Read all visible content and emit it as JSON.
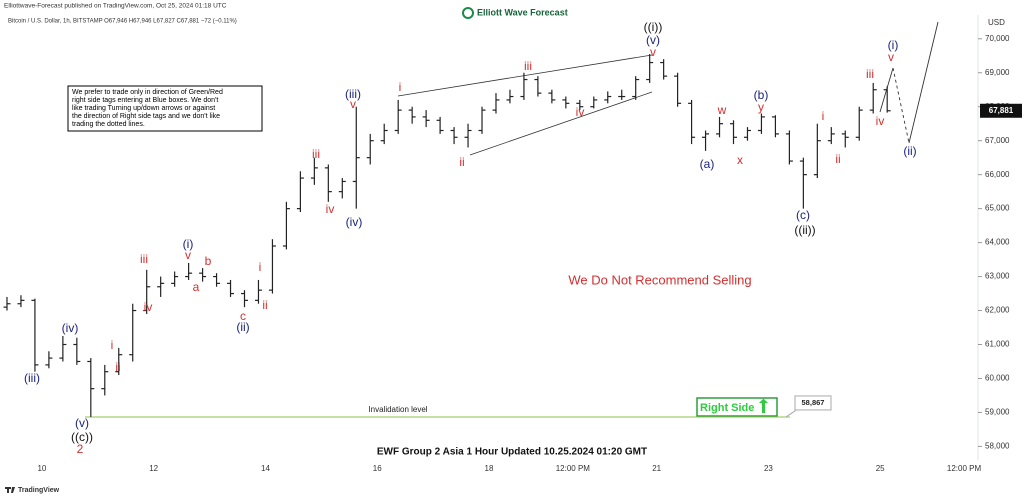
{
  "header": {
    "published": "Elliottwave-Forecast published on TradingView.com, Oct 25, 2024 01:18 UTC",
    "logo": "Elliott Wave Forecast",
    "footer": "TradingView"
  },
  "chart_data": {
    "type": "ohlc",
    "title": "EWF Group 2 Asia 1 Hour Updated 10.25.2024 01:20 GMT",
    "symbol_text": "Bitcoin / U.S. Dollar, 1h, BITSTAMP  O67,946 H67,946 L67,827 C67,881 −72 (−0.11%)",
    "currency": "USD",
    "color": "#222222",
    "grid": false,
    "categories": [
      null,
      null,
      null,
      "10",
      null,
      null,
      null,
      null,
      null,
      null,
      null,
      "12",
      null,
      null,
      null,
      null,
      null,
      null,
      null,
      "14",
      null,
      null,
      null,
      null,
      null,
      null,
      null,
      "16",
      null,
      null,
      null,
      null,
      null,
      null,
      null,
      "18",
      null,
      null,
      null,
      null,
      null,
      "12:00 PM",
      null,
      null,
      null,
      null,
      null,
      "21",
      null,
      null,
      null,
      null,
      null,
      null,
      null,
      "23",
      null,
      null,
      null,
      null,
      null,
      null,
      null,
      "25",
      null,
      null,
      null,
      null,
      null,
      "12:00 PM"
    ],
    "open": [
      62100,
      62200,
      62300,
      60400,
      60600,
      61000,
      60500,
      59700,
      60200,
      60700,
      62000,
      62700,
      62800,
      63000,
      63100,
      63000,
      62800,
      62500,
      62300,
      62600,
      63900,
      65000,
      65900,
      66200,
      65500,
      65800,
      66500,
      67000,
      67300,
      67900,
      67700,
      67600,
      67300,
      67100,
      67300,
      67900,
      68200,
      68300,
      68800,
      68400,
      68200,
      68100,
      68000,
      68200,
      68300,
      68300,
      68800,
      69300,
      68900,
      68100,
      67100,
      67200,
      67500,
      67100,
      67300,
      67700,
      67200,
      66400,
      66000,
      67000,
      67200,
      67100,
      67900,
      68500,
      null,
      null,
      null,
      null,
      null,
      null
    ],
    "high": [
      62400,
      62450,
      62350,
      60800,
      61250,
      61200,
      60600,
      60400,
      60900,
      62200,
      63200,
      63000,
      63150,
      63400,
      63250,
      63100,
      62900,
      62600,
      62900,
      64100,
      65200,
      66100,
      66500,
      66300,
      65900,
      68000,
      67200,
      67500,
      68200,
      68000,
      67900,
      67700,
      67400,
      67500,
      68000,
      68400,
      68500,
      69000,
      68900,
      68500,
      68300,
      68200,
      68300,
      68450,
      68500,
      68900,
      69550,
      69400,
      69000,
      68200,
      67300,
      67700,
      67600,
      67400,
      67800,
      67750,
      67300,
      66500,
      67500,
      67400,
      67300,
      68000,
      68700,
      68600,
      null,
      null,
      null,
      null,
      null,
      null
    ],
    "low": [
      62000,
      62100,
      60200,
      60300,
      60500,
      60400,
      58867,
      59500,
      60100,
      60500,
      61900,
      62400,
      62700,
      62900,
      62850,
      62700,
      62400,
      62100,
      62200,
      62500,
      63800,
      64900,
      65700,
      65200,
      65300,
      65000,
      66300,
      66900,
      67200,
      67500,
      67400,
      67200,
      66900,
      66800,
      67200,
      67800,
      68100,
      68200,
      68300,
      68100,
      67950,
      67900,
      67950,
      68100,
      68200,
      68200,
      68700,
      68800,
      68000,
      66900,
      66700,
      67100,
      66900,
      67000,
      67200,
      67100,
      66300,
      65000,
      65900,
      66900,
      66800,
      67000,
      67800,
      67827,
      null,
      null,
      null,
      null,
      null,
      null
    ],
    "close": [
      62200,
      62300,
      60400,
      60600,
      61000,
      60500,
      59700,
      60200,
      60700,
      62000,
      62700,
      62800,
      63000,
      63100,
      63000,
      62800,
      62500,
      62300,
      62600,
      63900,
      65000,
      65900,
      66200,
      65500,
      65800,
      66500,
      67000,
      67300,
      67900,
      67700,
      67600,
      67300,
      67100,
      67300,
      67900,
      68200,
      68300,
      68800,
      68400,
      68200,
      68100,
      68000,
      68200,
      68300,
      68300,
      68800,
      69300,
      68900,
      68100,
      67100,
      67200,
      67500,
      67100,
      67300,
      67700,
      67200,
      66400,
      66000,
      67000,
      67200,
      67100,
      67900,
      68500,
      67881,
      null,
      null,
      null,
      null,
      null,
      null
    ],
    "ylim": [
      57600,
      70700
    ],
    "yticks": [
      {
        "value": 58000,
        "label": "58,000"
      },
      {
        "value": 59000,
        "label": "59,000"
      },
      {
        "value": 60000,
        "label": "60,000"
      },
      {
        "value": 61000,
        "label": "61,000"
      },
      {
        "value": 62000,
        "label": "62,000"
      },
      {
        "value": 63000,
        "label": "63,000"
      },
      {
        "value": 64000,
        "label": "64,000"
      },
      {
        "value": 65000,
        "label": "65,000"
      },
      {
        "value": 66000,
        "label": "66,000"
      },
      {
        "value": 67000,
        "label": "67,000"
      },
      {
        "value": 68000,
        "label": "68,000"
      },
      {
        "value": 69000,
        "label": "69,000"
      },
      {
        "value": 70000,
        "label": "70,000"
      }
    ],
    "last_price": {
      "value": 67881,
      "label": "67,881"
    },
    "invalidation": {
      "value": 58867,
      "label": "58,867",
      "text": "Invalidation level"
    },
    "note": [
      "We prefer to trade only in direction of Green/Red",
      "right side tags entering at Blue boxes. We don't",
      "like trading Turning up/down arrows or against",
      "the direction of Right side tags and we don't like",
      "trading the dotted lines."
    ],
    "recommendation": "We Do Not Recommend Selling",
    "right_side": "Right Side",
    "wave_labels": [
      {
        "text": "(iii)",
        "color": "#1a237e"
      },
      {
        "text": "(iv)",
        "color": "#1a237e"
      },
      {
        "text": "(v)",
        "color": "#1a237e"
      },
      {
        "text": "((c))",
        "color": "#111111"
      },
      {
        "text": "2",
        "color": "#d32f2f"
      },
      {
        "text": "i",
        "color": "#d32f2f"
      },
      {
        "text": "ii",
        "color": "#d32f2f"
      },
      {
        "text": "iii",
        "color": "#d32f2f"
      },
      {
        "text": "iv",
        "color": "#d32f2f"
      },
      {
        "text": "(i)",
        "color": "#1a237e"
      },
      {
        "text": "v",
        "color": "#d32f2f"
      },
      {
        "text": "a",
        "color": "#d32f2f"
      },
      {
        "text": "b",
        "color": "#d32f2f"
      },
      {
        "text": "c",
        "color": "#d32f2f"
      },
      {
        "text": "(ii)",
        "color": "#1a237e"
      },
      {
        "text": "i",
        "color": "#d32f2f"
      },
      {
        "text": "ii",
        "color": "#d32f2f"
      },
      {
        "text": "iii",
        "color": "#d32f2f"
      },
      {
        "text": "iv",
        "color": "#d32f2f"
      },
      {
        "text": "(iii)",
        "color": "#1a237e"
      },
      {
        "text": "v",
        "color": "#d32f2f"
      },
      {
        "text": "(iv)",
        "color": "#1a237e"
      },
      {
        "text": "i",
        "color": "#d32f2f"
      },
      {
        "text": "ii",
        "color": "#d32f2f"
      },
      {
        "text": "iii",
        "color": "#d32f2f"
      },
      {
        "text": "iv",
        "color": "#d32f2f"
      },
      {
        "text": "((i))",
        "color": "#111111"
      },
      {
        "text": "(v)",
        "color": "#1a237e"
      },
      {
        "text": "v",
        "color": "#d32f2f"
      },
      {
        "text": "(a)",
        "color": "#1a237e"
      },
      {
        "text": "w",
        "color": "#d32f2f"
      },
      {
        "text": "x",
        "color": "#d32f2f"
      },
      {
        "text": "(b)",
        "color": "#1a237e"
      },
      {
        "text": "y",
        "color": "#d32f2f"
      },
      {
        "text": "(c)",
        "color": "#1a237e"
      },
      {
        "text": "((ii))",
        "color": "#111111"
      },
      {
        "text": "i",
        "color": "#d32f2f"
      },
      {
        "text": "ii",
        "color": "#d32f2f"
      },
      {
        "text": "iii",
        "color": "#d32f2f"
      },
      {
        "text": "iv",
        "color": "#d32f2f"
      },
      {
        "text": "(i)",
        "color": "#1a237e"
      },
      {
        "text": "v",
        "color": "#d32f2f"
      },
      {
        "text": "(ii)",
        "color": "#1a237e"
      }
    ]
  }
}
